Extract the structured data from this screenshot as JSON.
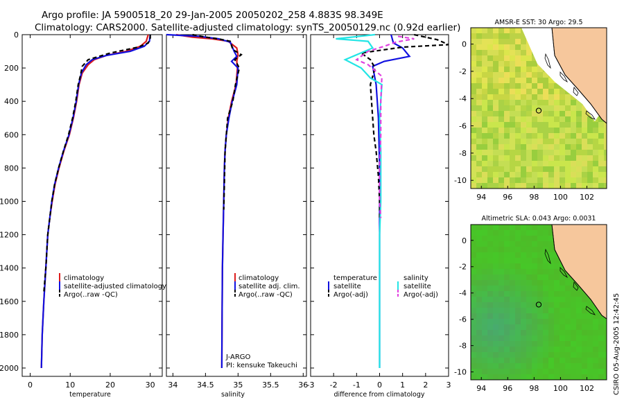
{
  "header": {
    "line1": "Argo profile: JA 5900518_20 29-Jan-2005 20050202_258 4.883S 98.349E",
    "line2": "Climatology: CARS2000. Satellite-adjusted climatology: synTS_20050129.nc (0.92d earlier)"
  },
  "stamp": "CSIRO 05-Aug-2005 12:42:45",
  "colors": {
    "red": "#dd1c1c",
    "blue": "#1010e0",
    "black": "#000000",
    "cyan": "#22e5e5",
    "magenta": "#e040e0",
    "land": "#f6c79c"
  },
  "chart_data": [
    {
      "id": "temperature",
      "type": "line",
      "xlabel": "temperature",
      "xlim": [
        -2,
        33
      ],
      "ylim": [
        2050,
        0
      ],
      "xticks": [
        0,
        10,
        20,
        30
      ],
      "yticks": [
        0,
        200,
        400,
        600,
        800,
        1000,
        1200,
        1400,
        1600,
        1800,
        2000
      ],
      "legend": [
        "climatology",
        "satellite-adjusted climatology",
        "Argo(..raw -QC)"
      ],
      "series": [
        {
          "name": "climatology",
          "color": "red",
          "dash": false,
          "x": [
            29.5,
            29,
            27.5,
            24,
            19,
            16,
            14.5,
            13,
            12.2,
            11.6,
            10.8,
            9.8,
            8.4,
            7.2,
            6.2,
            5.5,
            4.9,
            4.4,
            3.9,
            3.4,
            3.0,
            2.8
          ],
          "y": [
            0,
            40,
            70,
            100,
            125,
            150,
            180,
            230,
            300,
            400,
            500,
            600,
            700,
            800,
            900,
            1000,
            1100,
            1200,
            1400,
            1600,
            1800,
            2000
          ]
        },
        {
          "name": "satellite-adjusted climatology",
          "color": "blue",
          "dash": false,
          "x": [
            30,
            29.8,
            28.5,
            25,
            19,
            15.5,
            14,
            12.8,
            12.1,
            11.5,
            10.7,
            9.7,
            8.3,
            7.1,
            6.1,
            5.4,
            4.9,
            4.4,
            3.9,
            3.4,
            3.0,
            2.8
          ],
          "y": [
            0,
            40,
            70,
            100,
            125,
            150,
            180,
            230,
            300,
            400,
            500,
            600,
            700,
            800,
            900,
            1000,
            1100,
            1200,
            1400,
            1600,
            1800,
            2000
          ]
        },
        {
          "name": "Argo(..raw -QC)",
          "color": "black",
          "dash": true,
          "x": [
            30,
            30,
            29.5,
            27,
            20,
            14.5,
            13,
            12.6,
            12,
            11.4,
            10.6,
            9.6,
            8.3,
            7.1,
            6.1,
            5.4,
            4.9,
            4.4,
            3.9,
            3.4
          ],
          "y": [
            0,
            20,
            50,
            75,
            110,
            150,
            190,
            240,
            300,
            400,
            500,
            600,
            700,
            800,
            900,
            1000,
            1100,
            1200,
            1400,
            1550
          ]
        }
      ]
    },
    {
      "id": "salinity",
      "type": "line",
      "xlabel": "salinity",
      "xlim": [
        33.9,
        36.05
      ],
      "ylim": [
        2050,
        0
      ],
      "xticks": [
        34,
        34.5,
        35,
        35.5,
        36
      ],
      "legend": [
        "climatology",
        "satellite adj. clim.",
        "Argo(..raw -QC)"
      ],
      "annotation": [
        "J-ARGO",
        "PI: kensuke Takeuchi"
      ],
      "series": [
        {
          "name": "climatology",
          "color": "red",
          "dash": false,
          "x": [
            34.05,
            34.3,
            34.6,
            34.85,
            34.98,
            35.0,
            34.98,
            34.99,
            34.97,
            34.9,
            34.85,
            34.82,
            34.8,
            34.79,
            34.78,
            34.77,
            34.76,
            34.755,
            34.75
          ],
          "y": [
            0,
            15,
            25,
            40,
            80,
            120,
            160,
            200,
            300,
            400,
            500,
            600,
            700,
            800,
            1000,
            1200,
            1400,
            1700,
            2000
          ]
        },
        {
          "name": "satellite adj. clim.",
          "color": "blue",
          "dash": false,
          "x": [
            33.9,
            34.4,
            34.7,
            34.88,
            34.94,
            34.98,
            34.9,
            35.0,
            34.98,
            34.91,
            34.86,
            34.82,
            34.8,
            34.79,
            34.78,
            34.77,
            34.76,
            34.755,
            34.75
          ],
          "y": [
            0,
            10,
            25,
            45,
            100,
            130,
            160,
            200,
            300,
            400,
            500,
            600,
            700,
            800,
            1000,
            1200,
            1400,
            1700,
            2000
          ]
        },
        {
          "name": "Argo(..raw -QC)",
          "color": "black",
          "dash": true,
          "x": [
            34.3,
            34.5,
            34.7,
            34.88,
            34.92,
            35.05,
            34.95,
            35.02,
            34.96,
            34.92,
            34.84,
            34.8,
            34.79,
            34.78
          ],
          "y": [
            0,
            15,
            25,
            40,
            90,
            120,
            150,
            200,
            300,
            400,
            500,
            700,
            900,
            1050
          ]
        }
      ]
    },
    {
      "id": "difference",
      "type": "line",
      "xlabel": "difference from climatology",
      "xlim": [
        -3,
        3
      ],
      "ylim": [
        2050,
        0
      ],
      "xticks": [
        -3,
        -2,
        -1,
        0,
        1,
        2,
        3
      ],
      "legend_left": [
        "temperature",
        "satellite",
        "Argo(-adj)"
      ],
      "legend_right": [
        "salinity",
        "satellite",
        "Argo(-adj)"
      ],
      "series": [
        {
          "name": "temperature satellite",
          "color": "blue",
          "dash": false,
          "x": [
            0.5,
            0.6,
            1.0,
            1.3,
            0.2,
            -0.3,
            -0.15,
            -0.05,
            0.0,
            0.0,
            0.0,
            0.0,
            0.0
          ],
          "y": [
            0,
            50,
            80,
            130,
            160,
            190,
            300,
            500,
            800,
            1100,
            1400,
            1700,
            2000
          ]
        },
        {
          "name": "temperature Argo(-adj)",
          "color": "black",
          "dash": true,
          "x": [
            1.5,
            2.5,
            3.0,
            1.0,
            -0.8,
            -0.4,
            -0.2,
            -0.4,
            -0.3,
            -0.25,
            -0.15,
            -0.05,
            0.0,
            0.0
          ],
          "y": [
            0,
            30,
            60,
            75,
            110,
            150,
            200,
            300,
            500,
            600,
            700,
            850,
            1000,
            1100
          ]
        },
        {
          "name": "salinity satellite",
          "color": "cyan",
          "dash": false,
          "x": [
            -0.2,
            -1.9,
            -0.5,
            -0.3,
            -1.5,
            -0.8,
            -0.4,
            0.1,
            0.0,
            0.05,
            0.05,
            0.0,
            0.0,
            0.0
          ],
          "y": [
            0,
            25,
            40,
            80,
            150,
            200,
            260,
            300,
            500,
            700,
            1000,
            1200,
            1600,
            2000
          ]
        },
        {
          "name": "salinity Argo(-adj)",
          "color": "magenta",
          "dash": true,
          "x": [
            0.8,
            1.5,
            0.7,
            0.2,
            -0.5,
            -1.0,
            -0.5,
            0.1,
            0.05,
            0.05,
            0.0,
            0.0,
            0.05
          ],
          "y": [
            10,
            25,
            45,
            70,
            100,
            150,
            180,
            250,
            400,
            600,
            800,
            1000,
            1100
          ]
        }
      ]
    },
    {
      "id": "sst-map",
      "type": "heatmap",
      "title": "AMSR-E SST: 30 Argo: 29.5",
      "xlim": [
        93.2,
        103.5
      ],
      "ylim": [
        -10.6,
        1.2
      ],
      "xticks": [
        94,
        96,
        98,
        100,
        102
      ],
      "yticks": [
        0,
        -2,
        -4,
        -6,
        -8,
        -10
      ],
      "argo_location": {
        "lon": 98.349,
        "lat": -4.883
      }
    },
    {
      "id": "sla-map",
      "type": "heatmap",
      "title": "Altimetric SLA: 0.043 Argo: 0.0031",
      "xlim": [
        93.2,
        103.5
      ],
      "ylim": [
        -10.6,
        1.2
      ],
      "xticks": [
        94,
        96,
        98,
        100,
        102
      ],
      "yticks": [
        0,
        -2,
        -4,
        -6,
        -8,
        -10
      ],
      "argo_location": {
        "lon": 98.349,
        "lat": -4.883
      }
    }
  ]
}
